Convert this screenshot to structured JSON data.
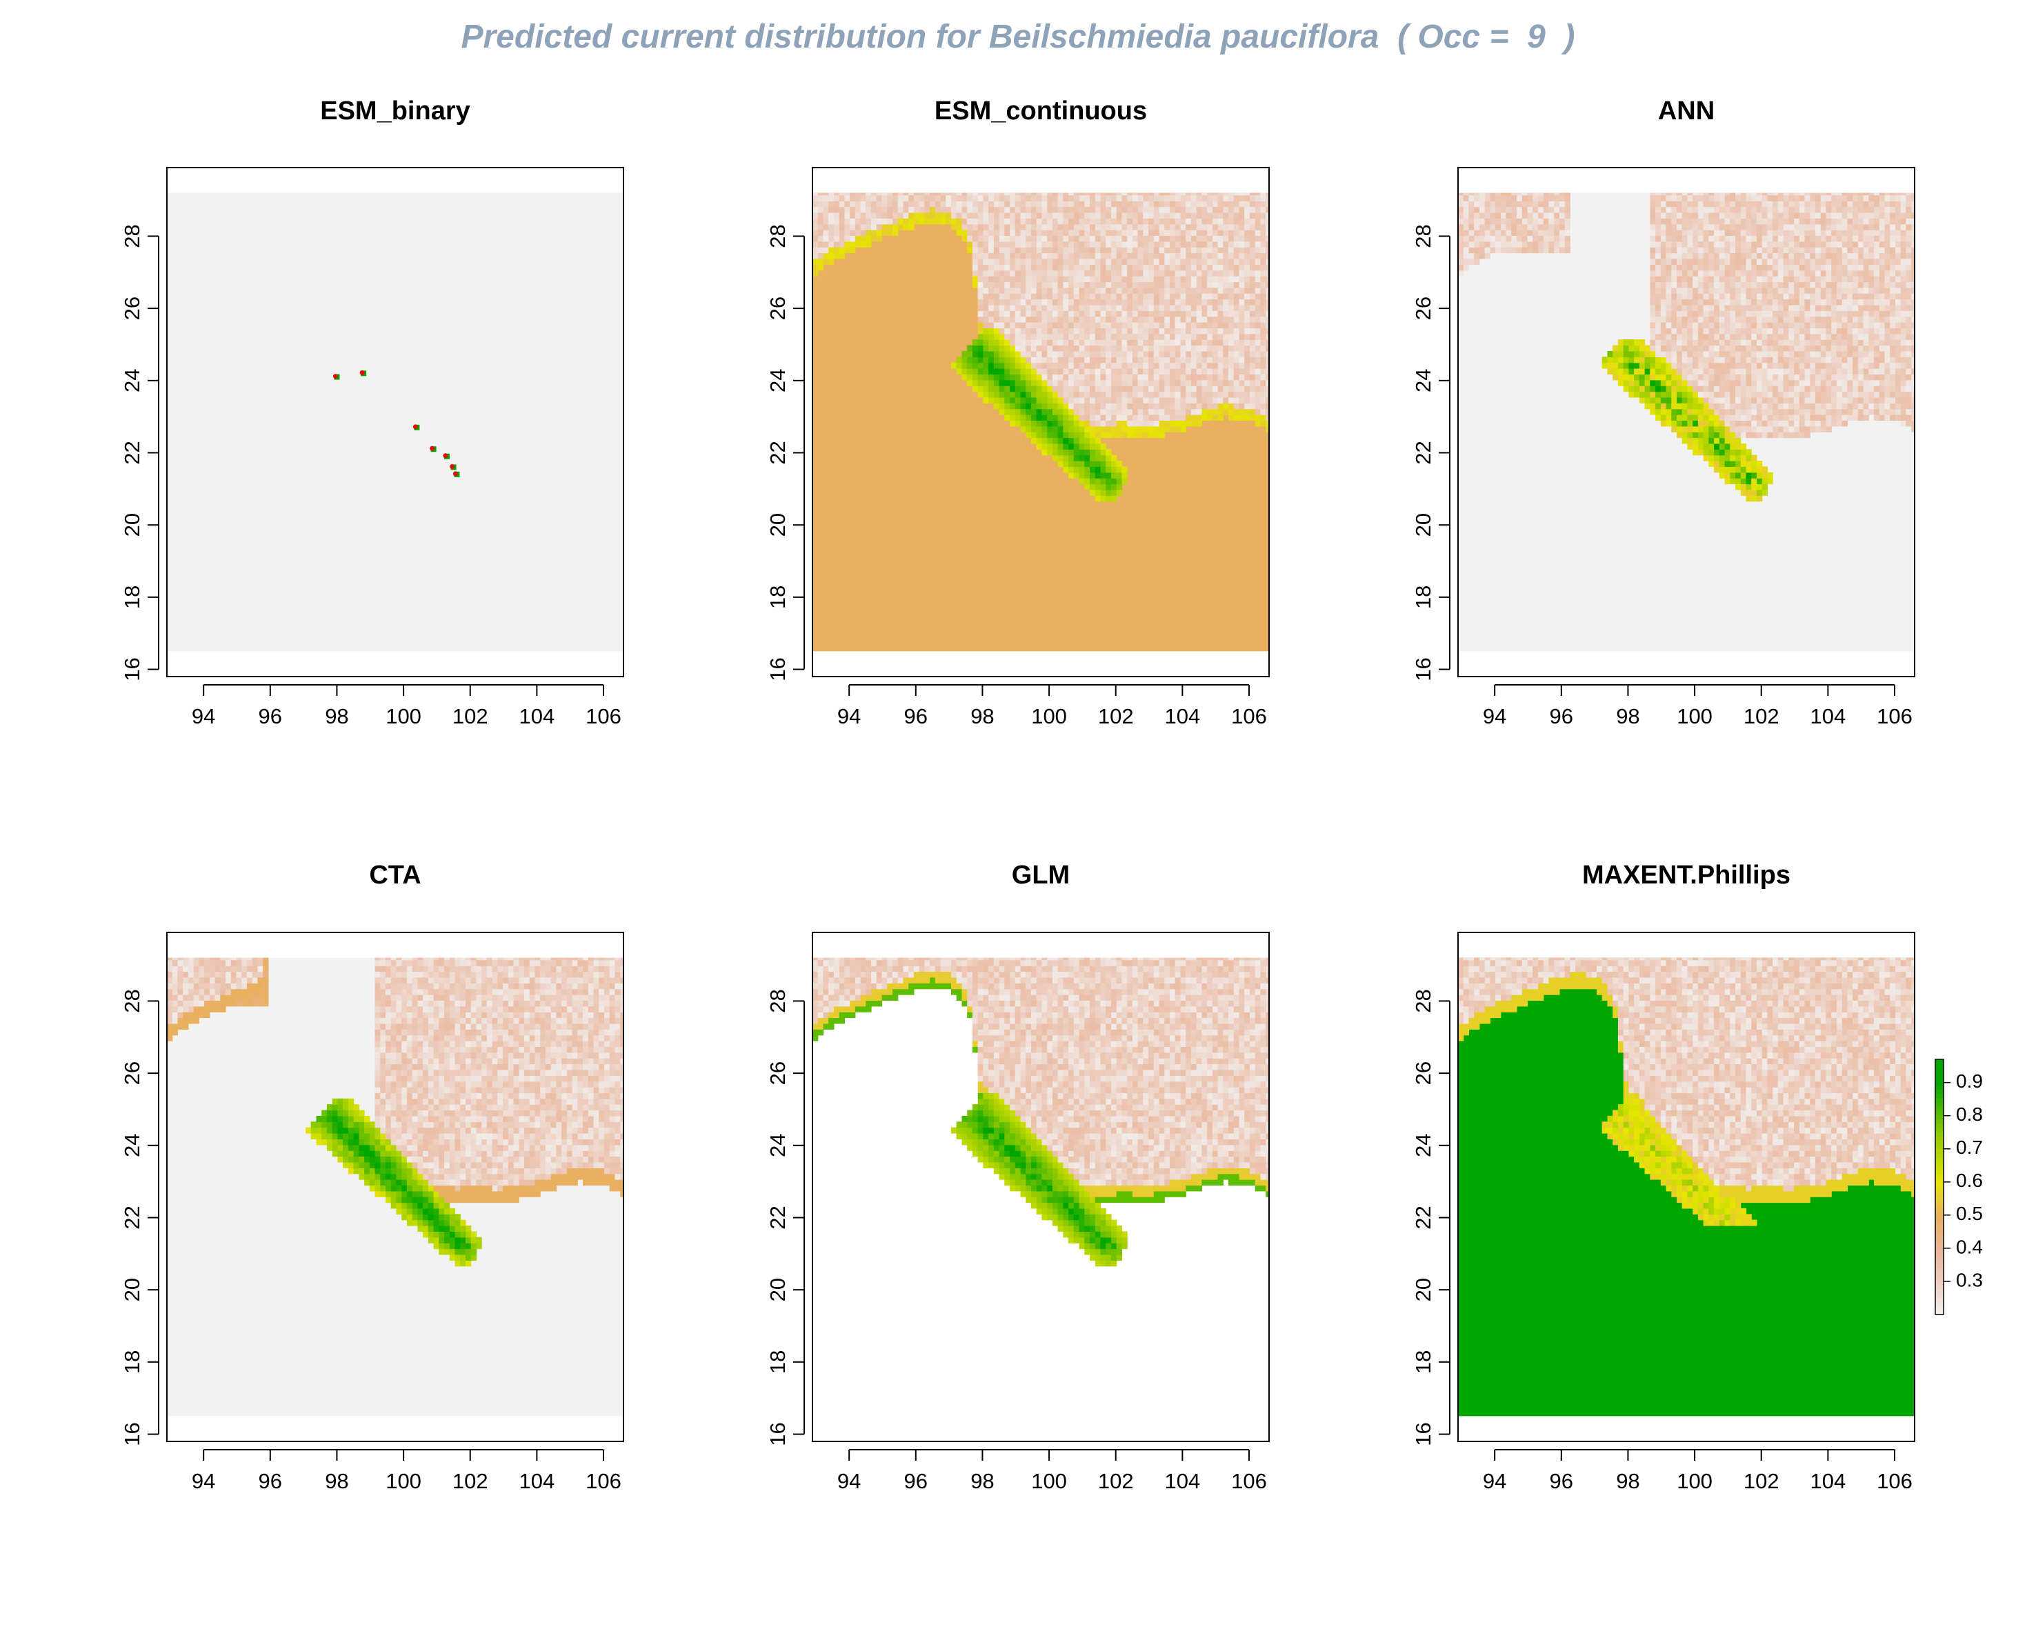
{
  "title": "Predicted current distribution for Beilschmiedia pauciflora  ( Occ =  9  )",
  "colors": {
    "title": "#8FA3B8",
    "background_cell": "#F2F2F2",
    "ramp": [
      "#F2F2F2",
      "#EBC2B0",
      "#E5A060",
      "#E8B060",
      "#E6E600",
      "#8BC800",
      "#00A600"
    ]
  },
  "chart_data": [
    {
      "type": "heatmap",
      "panel": "ESM_binary",
      "title": "ESM_binary",
      "xlim": [
        92.9,
        106.6
      ],
      "ylim": [
        15.8,
        29.9
      ],
      "raster_extent": {
        "x": [
          92.9,
          106.6
        ],
        "y": [
          16.5,
          29.2
        ]
      },
      "xticks": [
        "94",
        "96",
        "98",
        "100",
        "102",
        "104",
        "106"
      ],
      "yticks": [
        "16",
        "18",
        "20",
        "22",
        "24",
        "26",
        "28"
      ],
      "fill": "#F2F2F2",
      "occurrences": [
        [
          98.0,
          24.1
        ],
        [
          98.8,
          24.2
        ],
        [
          100.4,
          22.7
        ],
        [
          100.9,
          22.1
        ],
        [
          101.3,
          21.9
        ],
        [
          101.5,
          21.6
        ],
        [
          101.6,
          21.4
        ]
      ]
    },
    {
      "type": "heatmap",
      "panel": "ESM_continuous",
      "title": "ESM_continuous",
      "xlim": [
        92.9,
        106.6
      ],
      "ylim": [
        15.8,
        29.9
      ],
      "raster_extent": {
        "x": [
          92.9,
          106.6
        ],
        "y": [
          16.5,
          29.2
        ]
      },
      "xticks": [
        "94",
        "96",
        "98",
        "100",
        "102",
        "104",
        "106"
      ],
      "yticks": [
        "16",
        "18",
        "20",
        "22",
        "24",
        "26",
        "28"
      ],
      "fill": "#E8B060",
      "suitable_region_value": 0.55,
      "highland_region_value": 0.3,
      "core_value": 0.9
    },
    {
      "type": "heatmap",
      "panel": "ANN",
      "title": "ANN",
      "xlim": [
        92.9,
        106.6
      ],
      "ylim": [
        15.8,
        29.9
      ],
      "raster_extent": {
        "x": [
          92.9,
          106.6
        ],
        "y": [
          16.5,
          29.2
        ]
      },
      "xticks": [
        "94",
        "96",
        "98",
        "100",
        "102",
        "104",
        "106"
      ],
      "yticks": [
        "16",
        "18",
        "20",
        "22",
        "24",
        "26",
        "28"
      ],
      "fill": "#F2F2F2",
      "highland_region_value": 0.3,
      "core_value": 0.8
    },
    {
      "type": "heatmap",
      "panel": "CTA",
      "title": "CTA",
      "xlim": [
        92.9,
        106.6
      ],
      "ylim": [
        15.8,
        29.9
      ],
      "raster_extent": {
        "x": [
          92.9,
          106.6
        ],
        "y": [
          16.5,
          29.2
        ]
      },
      "xticks": [
        "94",
        "96",
        "98",
        "100",
        "102",
        "104",
        "106"
      ],
      "yticks": [
        "16",
        "18",
        "20",
        "22",
        "24",
        "26",
        "28"
      ],
      "fill": "#F2F2F2",
      "highland_region_value": 0.3,
      "core_value": 0.8
    },
    {
      "type": "heatmap",
      "panel": "GLM",
      "title": "GLM",
      "xlim": [
        92.9,
        106.6
      ],
      "ylim": [
        15.8,
        29.9
      ],
      "raster_extent": {
        "x": [
          92.9,
          106.6
        ],
        "y": [
          16.5,
          29.2
        ]
      },
      "xticks": [
        "94",
        "96",
        "98",
        "100",
        "102",
        "104",
        "106"
      ],
      "yticks": [
        "16",
        "18",
        "20",
        "22",
        "24",
        "26",
        "28"
      ],
      "fill": "#FFFFFF",
      "highland_region_value": 0.3,
      "core_value": 0.85
    },
    {
      "type": "heatmap",
      "panel": "MAXENT.Phillips",
      "title": "MAXENT.Phillips",
      "xlim": [
        92.9,
        106.6
      ],
      "ylim": [
        15.8,
        29.9
      ],
      "raster_extent": {
        "x": [
          92.9,
          106.6
        ],
        "y": [
          16.5,
          29.2
        ]
      },
      "xticks": [
        "94",
        "96",
        "98",
        "100",
        "102",
        "104",
        "106"
      ],
      "yticks": [
        "16",
        "18",
        "20",
        "22",
        "24",
        "26",
        "28"
      ],
      "fill": "#00A600",
      "highland_region_value": 0.3,
      "core_value": 0.7,
      "legend": {
        "range": [
          0.2,
          0.97
        ],
        "ticks": [
          "0.9",
          "0.8",
          "0.7",
          "0.6",
          "0.5",
          "0.4",
          "0.3"
        ],
        "tick_values": [
          0.9,
          0.8,
          0.7,
          0.6,
          0.5,
          0.4,
          0.3
        ]
      }
    }
  ]
}
